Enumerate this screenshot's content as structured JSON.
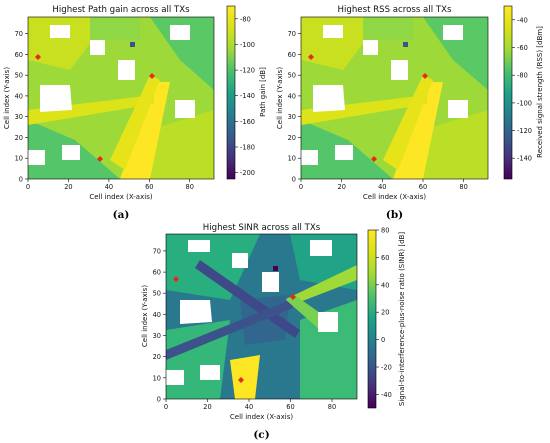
{
  "chart_data": [
    {
      "type": "heatmap",
      "caption": "(a)",
      "title": "Highest Path gain across all TXs",
      "xlabel": "Cell index (X-axis)",
      "ylabel": "Cell index (Y-axis)",
      "xlim": [
        0,
        92
      ],
      "ylim": [
        0,
        78
      ],
      "xticks": [
        0,
        20,
        40,
        60,
        80
      ],
      "yticks": [
        0,
        10,
        20,
        30,
        40,
        50,
        60,
        70
      ],
      "colorbar": {
        "label": "Path gain [dB]",
        "range": [
          -210,
          -75
        ],
        "ticks": [
          -80,
          -100,
          -120,
          -140,
          -160,
          -180,
          -200
        ],
        "colormap": "viridis"
      },
      "transmitters": [
        {
          "x": 5,
          "y": 58
        },
        {
          "x": 61,
          "y": 49
        },
        {
          "x": 36,
          "y": 9
        }
      ]
    },
    {
      "type": "heatmap",
      "caption": "(b)",
      "title": "Highest RSS across all TXs",
      "xlabel": "Cell index (X-axis)",
      "ylabel": "Cell index (Y-axis)",
      "xlim": [
        0,
        92
      ],
      "ylim": [
        0,
        78
      ],
      "xticks": [
        0,
        20,
        40,
        60,
        80
      ],
      "yticks": [
        0,
        10,
        20,
        30,
        40,
        50,
        60,
        70
      ],
      "colorbar": {
        "label": "Received signal strength (RSS) [dBm]",
        "range": [
          -155,
          -30
        ],
        "ticks": [
          -40,
          -60,
          -80,
          -100,
          -120,
          -140
        ],
        "colormap": "viridis"
      },
      "transmitters": [
        {
          "x": 5,
          "y": 58
        },
        {
          "x": 61,
          "y": 49
        },
        {
          "x": 36,
          "y": 9
        }
      ]
    },
    {
      "type": "heatmap",
      "caption": "(c)",
      "title": "Highest SINR across all TXs",
      "xlabel": "Cell index (X-axis)",
      "ylabel": "Cell index (Y-axis)",
      "xlim": [
        0,
        92
      ],
      "ylim": [
        0,
        78
      ],
      "xticks": [
        0,
        20,
        40,
        60,
        80
      ],
      "yticks": [
        0,
        10,
        20,
        30,
        40,
        50,
        60,
        70
      ],
      "colorbar": {
        "label": "Signal-to-interference-plus-noise ratio (SINR) [dB]",
        "range": [
          -48,
          82
        ],
        "ticks": [
          80,
          60,
          40,
          20,
          0,
          -20,
          -40
        ],
        "colormap": "viridis"
      },
      "transmitters": [
        {
          "x": 5,
          "y": 58
        },
        {
          "x": 61,
          "y": 49
        },
        {
          "x": 36,
          "y": 9
        }
      ]
    }
  ]
}
